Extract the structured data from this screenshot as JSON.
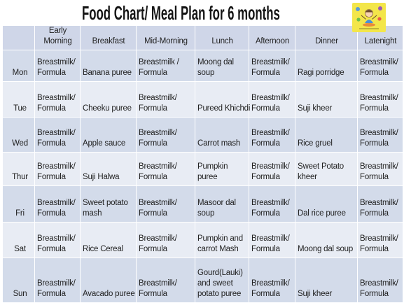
{
  "title": "Food Chart/ Meal Plan for 6 months",
  "table": {
    "columns": [
      "Early\nMorning",
      "Breakfast",
      "Mid-Morning",
      "Lunch",
      "Afternoon",
      "Dinner",
      "Latenight"
    ],
    "rows": [
      {
        "day": "Mon",
        "cells": [
          "Breastmilk/\nFormula",
          "Banana puree",
          "Breastmilk /\nFormula",
          "Moong dal\nsoup",
          "Breastmilk/\nFormula",
          "Ragi porridge",
          "Breastmilk/\nFormula"
        ]
      },
      {
        "day": "Tue",
        "cells": [
          "Breastmilk/\nFormula",
          "Cheeku puree",
          "Breastmilk/\nFormula",
          "Pureed Khichdi",
          "Breastmilk/\nFormula",
          "Suji kheer",
          "Breastmilk/\nFormula"
        ]
      },
      {
        "day": "Wed",
        "cells": [
          "Breastmilk/\nFormula",
          "Apple sauce",
          "Breastmilk/\nFormula",
          "Carrot mash",
          "Breastmilk/\nFormula",
          "Rice gruel",
          "Breastmilk/\nFormula"
        ]
      },
      {
        "day": "Thur",
        "cells": [
          "Breastmilk/\nFormula",
          "Suji Halwa",
          "Breastmilk/\nFormula",
          "Pumpkin\npuree",
          "Breastmilk/\nFormula",
          "Sweet Potato\nkheer",
          "Breastmilk/\nFormula"
        ]
      },
      {
        "day": "Fri",
        "cells": [
          "Breastmilk/\nFormula",
          "Sweet potato\nmash",
          "Breastmilk/\nFormula",
          "Masoor dal\nsoup",
          "Breastmilk/\nFormula",
          "Dal rice puree",
          "Breastmilk/\nFormula"
        ]
      },
      {
        "day": "Sat",
        "cells": [
          "Breastmilk/\nFormula",
          "Rice Cereal",
          "Breastmilk/\nFormula",
          "Pumpkin and\ncarrot Mash",
          "Breastmilk/\nFormula",
          "Moong dal soup",
          "Breastmilk/\nFormula"
        ]
      },
      {
        "day": "Sun",
        "cells": [
          "Breastmilk/\nFormula",
          "Avacado puree",
          "Breastmilk/\nFormula",
          "Gourd(Lauki)\nand sweet\npotato puree",
          "Breastmilk/\nFormula",
          "Suji kheer",
          "Breastmilk/\nFormula"
        ]
      }
    ]
  },
  "logo": {
    "icon": "cartoon-kid-logo-icon"
  },
  "colors": {
    "title": "#151515",
    "text": "#222222",
    "header_bg": "#cfd6e8",
    "band_dark_bg": "#d3dbea",
    "band_light_bg": "#e8ecf4",
    "grid_line": "#ffffff",
    "logo_bg": "#f3e64a"
  }
}
